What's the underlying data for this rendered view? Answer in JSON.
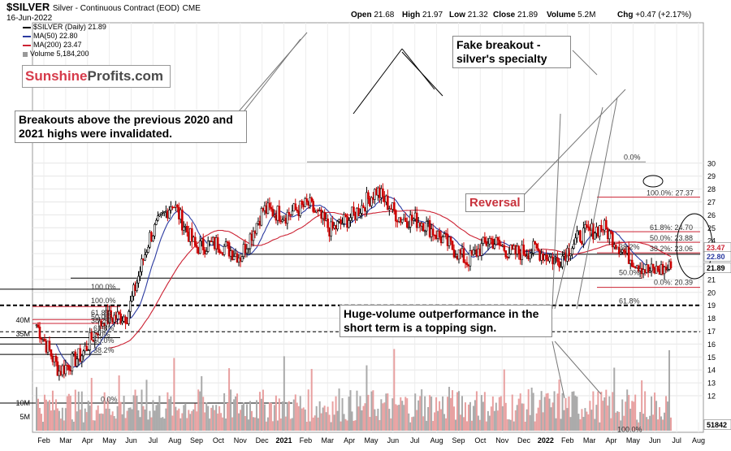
{
  "header": {
    "symbol": "$SILVER",
    "description": "Silver - Continuous Contract (EOD)",
    "exchange": "CME",
    "date": "16-Jun-2022",
    "open_label": "Open",
    "open": "21.68",
    "high_label": "High",
    "high": "21.97",
    "low_label": "Low",
    "low": "21.32",
    "close_label": "Close",
    "close": "21.89",
    "volume_label": "Volume",
    "volume": "5.2M",
    "chg_label": "Chg",
    "chg": "+0.47 (+2.17%)"
  },
  "legend": {
    "price": "$SILVER (Daily) 21.89",
    "ma50": "MA(50) 22.80",
    "ma200": "MA(200) 23.47",
    "volume": "Volume 5,184,200"
  },
  "colors": {
    "up": "#000000",
    "down": "#cc0000",
    "ma50": "#2b3aa0",
    "ma200": "#cc2233",
    "vol_up": "#aaaaaa",
    "vol_down": "#e8a0a0",
    "reversal": "#c8323c",
    "brand_red": "#d63a4a"
  },
  "brand": {
    "part1": "Sunshine",
    "part2": "Profits.com"
  },
  "annotations": {
    "breakouts": "Breakouts above the previous 2020 and 2021 highs were invalidated.",
    "fake_breakout": "Fake breakout - silver's specialty",
    "reversal": "Reversal",
    "volume_note": "Huge-volume outperformance in the short term is a topping sign."
  },
  "chart_data": {
    "type": "candlestick",
    "x_labels": [
      "Feb",
      "Mar",
      "Apr",
      "May",
      "Jun",
      "Jul",
      "Aug",
      "Sep",
      "Oct",
      "Nov",
      "Dec",
      "2021",
      "Feb",
      "Mar",
      "Apr",
      "May",
      "Jun",
      "Jul",
      "Aug",
      "Sep",
      "Oct",
      "Nov",
      "Dec",
      "2022",
      "Feb",
      "Mar",
      "Apr",
      "May",
      "Jun",
      "Jul",
      "Aug"
    ],
    "x_bold": [
      "2021",
      "2022"
    ],
    "price_ticks": [
      12,
      13,
      14,
      15,
      16,
      17,
      18,
      19,
      20,
      21,
      22,
      23,
      24,
      25,
      26,
      27,
      28,
      29,
      30
    ],
    "volume_ticks": [
      {
        "label": "5M",
        "value": 5
      },
      {
        "label": "10M",
        "value": 10
      },
      {
        "label": "35M",
        "value": 35
      },
      {
        "label": "40M",
        "value": 40
      }
    ],
    "last_price_tag": "21.89",
    "ma50_tag": "22.80",
    "ma200_tag": "23.47",
    "volume_tag": "51842",
    "fib_labels_right": [
      {
        "text": "0.0%",
        "price": 30.15
      },
      {
        "text": "100.0%: 27.37",
        "price": 27.37
      },
      {
        "text": "61.8%: 24.70",
        "price": 24.7
      },
      {
        "text": "50.0%: 23.88",
        "price": 23.88
      },
      {
        "text": "38.2%: 23.06",
        "price": 23.06
      },
      {
        "text": "50.0%",
        "price": 21.2
      },
      {
        "text": "0.0%: 20.39",
        "price": 20.45
      },
      {
        "text": "38.2%",
        "price": 23.2
      },
      {
        "text": "61.8%",
        "price": 19.0
      }
    ],
    "fib_labels_left": [
      {
        "text": "100.0%",
        "price": 20.1
      },
      {
        "text": "100.0%",
        "price": 19.05
      },
      {
        "text": "61.8%",
        "price": 18.1
      },
      {
        "text": "50.0%",
        "price": 17.8
      },
      {
        "text": "38.2%",
        "price": 17.5
      },
      {
        "text": "61.8%",
        "price": 16.9
      },
      {
        "text": "0.0%",
        "price": 16.4
      },
      {
        "text": "50.0%",
        "price": 15.95
      },
      {
        "text": "38.2%",
        "price": 15.2
      }
    ],
    "volume_fib_labels": [
      "0.0%",
      "100.0%"
    ],
    "series_monthly_close": [
      {
        "month": "Feb 2020",
        "close": 17.5
      },
      {
        "month": "Mar 2020",
        "close": 13.9
      },
      {
        "month": "Apr 2020",
        "close": 15.2
      },
      {
        "month": "May 2020",
        "close": 18.0
      },
      {
        "month": "Jun 2020",
        "close": 18.2
      },
      {
        "month": "Jul 2020",
        "close": 24.3
      },
      {
        "month": "Aug 2020",
        "close": 27.0
      },
      {
        "month": "Sep 2020",
        "close": 23.5
      },
      {
        "month": "Oct 2020",
        "close": 23.8
      },
      {
        "month": "Nov 2020",
        "close": 22.8
      },
      {
        "month": "Dec 2020",
        "close": 26.4
      },
      {
        "month": "Jan 2021",
        "close": 26.0
      },
      {
        "month": "Feb 2021",
        "close": 26.8
      },
      {
        "month": "Mar 2021",
        "close": 24.8
      },
      {
        "month": "Apr 2021",
        "close": 26.0
      },
      {
        "month": "May 2021",
        "close": 27.9
      },
      {
        "month": "Jun 2021",
        "close": 25.8
      },
      {
        "month": "Jul 2021",
        "close": 25.5
      },
      {
        "month": "Aug 2021",
        "close": 24.0
      },
      {
        "month": "Sep 2021",
        "close": 22.4
      },
      {
        "month": "Oct 2021",
        "close": 24.1
      },
      {
        "month": "Nov 2021",
        "close": 23.0
      },
      {
        "month": "Dec 2021",
        "close": 23.3
      },
      {
        "month": "Jan 2022",
        "close": 22.4
      },
      {
        "month": "Feb 2022",
        "close": 24.4
      },
      {
        "month": "Mar 2022",
        "close": 25.1
      },
      {
        "month": "Apr 2022",
        "close": 23.0
      },
      {
        "month": "May 2022",
        "close": 21.6
      },
      {
        "month": "Jun 2022",
        "close": 21.89
      }
    ]
  }
}
